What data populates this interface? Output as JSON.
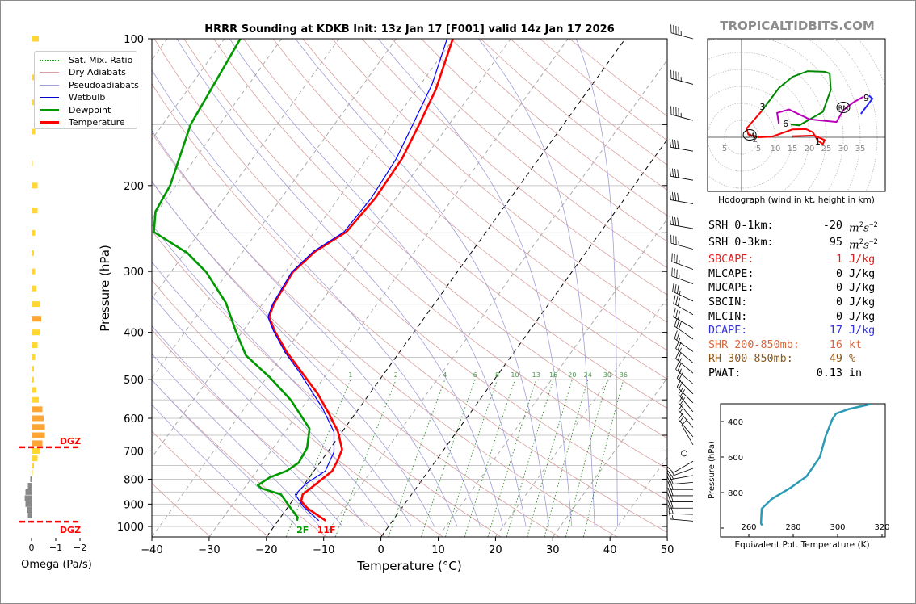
{
  "title": "HRRR Sounding at KDKB Init: 13z Jan 17 [F001] valid 14z Jan 17 2026",
  "brand": "TROPICALTIDBITS.COM",
  "colors": {
    "temperature": "#ff0000",
    "dewpoint": "#009900",
    "wetbulb": "#0000ff",
    "dry_adiabat": "#d9a0a0",
    "pseudoadiabat": "#a0a0d8",
    "mixing_ratio": "#2e8b2e",
    "thetae": "#2b9bb5",
    "omega_yellow": "#ffd633",
    "omega_orange": "#ffa533",
    "omega_gray": "#888888",
    "dgz": "#ff0000"
  },
  "legend": [
    {
      "label": "Sat. Mix. Ratio",
      "style": "dotted",
      "color": "#2e8b2e"
    },
    {
      "label": "Dry Adiabats",
      "style": "solid-thin",
      "color": "#d9a0a0"
    },
    {
      "label": "Pseudoadiabats",
      "style": "solid-thin",
      "color": "#a0a0d8"
    },
    {
      "label": "Wetbulb",
      "style": "solid",
      "color": "#0000cc"
    },
    {
      "label": "Dewpoint",
      "style": "thick",
      "color": "#009900"
    },
    {
      "label": "Temperature",
      "style": "thick",
      "color": "#ff0000"
    }
  ],
  "chart_data": [
    {
      "type": "line",
      "subtype": "skew-t",
      "title": "HRRR Sounding at KDKB Init: 13z Jan 17 [F001] valid 14z Jan 17 2026",
      "xlabel": "Temperature (°C)",
      "ylabel": "Pressure (hPa)",
      "xlim": [
        -40,
        50
      ],
      "ylim": [
        1050,
        100
      ],
      "yscale": "log",
      "x_ticks": [
        "−40",
        "−30",
        "−20",
        "−10",
        "0",
        "10",
        "20",
        "30",
        "40",
        "50"
      ],
      "y_ticks": [
        "100",
        "200",
        "300",
        "400",
        "500",
        "600",
        "700",
        "800",
        "900",
        "1000"
      ],
      "mixing_ratio_labels": [
        "1",
        "2",
        "4",
        "6",
        "8",
        "10",
        "13",
        "16",
        "20",
        "24",
        "30",
        "36"
      ],
      "highlight_isotherms": [
        0,
        -20
      ],
      "surface_labels": {
        "dewpoint": "2F",
        "temperature": "11F"
      },
      "series": [
        {
          "name": "Temperature",
          "p": [
            973,
            918,
            888,
            860,
            823,
            770,
            731,
            695,
            640,
            588,
            535,
            485,
            439,
            397,
            372,
            350,
            301,
            273,
            249,
            212,
            176,
            150,
            127,
            100
          ],
          "T": [
            -11.7,
            -16.4,
            -18.4,
            -19.0,
            -18.1,
            -16.8,
            -17.2,
            -17.8,
            -20.7,
            -24.5,
            -29.0,
            -34.3,
            -39.7,
            -44.5,
            -47.2,
            -48.0,
            -48.7,
            -47.4,
            -44.4,
            -43.6,
            -43.9,
            -45.2,
            -46.7,
            -50.1
          ]
        },
        {
          "name": "Dewpoint",
          "p": [
            973,
            958,
            910,
            860,
            835,
            823,
            793,
            770,
            740,
            690,
            630,
            550,
            496,
            446,
            397,
            348,
            301,
            275,
            249,
            226,
            200,
            150,
            100
          ],
          "T": [
            -16.7,
            -17.0,
            -19.8,
            -22.8,
            -27.0,
            -28.0,
            -26.9,
            -24.8,
            -23.7,
            -24.1,
            -26.1,
            -33.0,
            -39.3,
            -46.4,
            -51.3,
            -56.5,
            -63.8,
            -69.5,
            -78.0,
            -80.3,
            -81.0,
            -85.1,
            -87.2
          ]
        },
        {
          "name": "Wetbulb",
          "p": [
            973,
            910,
            860,
            817,
            770,
            703,
            640,
            572,
            485,
            439,
            397,
            372,
            350,
            301,
            273,
            249,
            212,
            176,
            150,
            124,
            100
          ],
          "T": [
            -12.9,
            -17.4,
            -20.3,
            -19.8,
            -18.0,
            -18.9,
            -21.4,
            -26.4,
            -34.7,
            -40.0,
            -44.7,
            -47.4,
            -48.2,
            -48.9,
            -47.7,
            -44.8,
            -44.3,
            -44.9,
            -46.3,
            -48.0,
            -51.1
          ]
        }
      ],
      "wind_barbs": [
        {
          "p": 100,
          "dir": 285,
          "kt": 45
        },
        {
          "p": 124,
          "dir": 285,
          "kt": 45
        },
        {
          "p": 147,
          "dir": 285,
          "kt": 45
        },
        {
          "p": 170,
          "dir": 280,
          "kt": 40
        },
        {
          "p": 195,
          "dir": 280,
          "kt": 40
        },
        {
          "p": 218,
          "dir": 280,
          "kt": 40
        },
        {
          "p": 245,
          "dir": 280,
          "kt": 40
        },
        {
          "p": 270,
          "dir": 285,
          "kt": 35
        },
        {
          "p": 297,
          "dir": 290,
          "kt": 35
        },
        {
          "p": 318,
          "dir": 290,
          "kt": 35
        },
        {
          "p": 345,
          "dir": 295,
          "kt": 35
        },
        {
          "p": 368,
          "dir": 300,
          "kt": 30
        },
        {
          "p": 392,
          "dir": 300,
          "kt": 30
        },
        {
          "p": 413,
          "dir": 305,
          "kt": 30
        },
        {
          "p": 438,
          "dir": 305,
          "kt": 25
        },
        {
          "p": 462,
          "dir": 310,
          "kt": 25
        },
        {
          "p": 485,
          "dir": 310,
          "kt": 25
        },
        {
          "p": 510,
          "dir": 310,
          "kt": 25
        },
        {
          "p": 535,
          "dir": 315,
          "kt": 20
        },
        {
          "p": 558,
          "dir": 315,
          "kt": 20
        },
        {
          "p": 582,
          "dir": 320,
          "kt": 20
        },
        {
          "p": 605,
          "dir": 320,
          "kt": 20
        },
        {
          "p": 627,
          "dir": 320,
          "kt": 15
        },
        {
          "p": 655,
          "dir": 320,
          "kt": 15
        },
        {
          "p": 680,
          "dir": 330,
          "kt": 10
        },
        {
          "p": 708,
          "dir": 0,
          "kt": 0
        },
        {
          "p": 735,
          "dir": 240,
          "kt": 10
        },
        {
          "p": 760,
          "dir": 250,
          "kt": 15
        },
        {
          "p": 786,
          "dir": 260,
          "kt": 15
        },
        {
          "p": 812,
          "dir": 265,
          "kt": 20
        },
        {
          "p": 840,
          "dir": 270,
          "kt": 20
        },
        {
          "p": 865,
          "dir": 270,
          "kt": 20
        },
        {
          "p": 890,
          "dir": 270,
          "kt": 20
        },
        {
          "p": 917,
          "dir": 270,
          "kt": 20
        },
        {
          "p": 945,
          "dir": 272,
          "kt": 20
        },
        {
          "p": 975,
          "dir": 275,
          "kt": 15
        }
      ]
    },
    {
      "type": "bar",
      "subtype": "omega-profile",
      "xlabel": "Omega (Pa/s)",
      "x_ticks": [
        "0",
        "−1",
        "−2"
      ],
      "xlim": [
        0.3,
        -2
      ],
      "dgz_label": "DGZ",
      "dgz_pressures": [
        688,
        978
      ],
      "p": [
        100,
        120,
        135,
        155,
        180,
        200,
        225,
        250,
        275,
        300,
        325,
        350,
        375,
        400,
        425,
        450,
        475,
        500,
        525,
        550,
        575,
        600,
        625,
        650,
        675,
        700,
        725,
        750,
        775,
        800,
        825,
        850,
        875,
        900,
        925,
        950
      ],
      "omega": [
        -0.3,
        -0.25,
        -0.2,
        -0.15,
        -0.05,
        -0.25,
        -0.25,
        -0.15,
        -0.1,
        -0.15,
        -0.2,
        -0.35,
        -0.4,
        -0.35,
        -0.25,
        -0.15,
        -0.1,
        -0.1,
        -0.2,
        -0.3,
        -0.45,
        -0.5,
        -0.55,
        -0.55,
        -0.45,
        -0.35,
        -0.25,
        -0.1,
        -0.05,
        0.05,
        0.15,
        0.25,
        0.28,
        0.25,
        0.2,
        0.15
      ]
    },
    {
      "type": "line",
      "subtype": "hodograph",
      "caption": "Hodograph (wind in kt, height in km)",
      "ring_labels": [
        "5",
        "5",
        "10",
        "15",
        "20",
        "25",
        "30",
        "35"
      ],
      "segments": [
        {
          "color": "#ff0000",
          "u": [
            15,
            21.5,
            24.5,
            24,
            22.5,
            21,
            19,
            15,
            9,
            5,
            2,
            1.5,
            6
          ],
          "v": [
            0.3,
            0.5,
            -0.8,
            -2,
            -1,
            1.5,
            2.4,
            2.3,
            0.2,
            0,
            0.8,
            2.6,
            7.8
          ]
        },
        {
          "color": "#008800",
          "u": [
            6,
            11,
            15,
            19.5,
            24.5,
            26,
            26.3,
            24,
            17,
            14.5
          ],
          "v": [
            7.8,
            14.5,
            17.8,
            19.5,
            19.3,
            18.8,
            14,
            7.5,
            3.5,
            3.8
          ]
        },
        {
          "color": "#bb00bb",
          "u": [
            11,
            10.5,
            14,
            20,
            28,
            30,
            33,
            36
          ],
          "v": [
            4,
            7.2,
            8.2,
            5.3,
            4.5,
            8,
            10.3,
            12
          ]
        },
        {
          "color": "#2222ff",
          "u": [
            35.2,
            38.6,
            37.5
          ],
          "v": [
            6.9,
            11.4,
            12.3
          ]
        }
      ],
      "height_labels": [
        {
          "t": "1",
          "u": 22.5,
          "v": -1.2
        },
        {
          "t": "2",
          "u": 4,
          "v": -0.3
        },
        {
          "t": "3",
          "u": 6.2,
          "v": 9
        },
        {
          "t": "6",
          "u": 13,
          "v": 4
        },
        {
          "t": "9",
          "u": 36.8,
          "v": 11.7
        }
      ],
      "markers": [
        {
          "t": "RM",
          "u": 30,
          "v": 8.8
        },
        {
          "t": "LM",
          "u": 2.4,
          "v": 0.7
        }
      ]
    },
    {
      "type": "line",
      "subtype": "theta-e-profile",
      "xlabel": "Equivalent Pot. Temperature (K)",
      "ylabel": "Pressure (hPa)",
      "xlim": [
        247,
        323
      ],
      "ylim": [
        1050,
        300
      ],
      "x_ticks": [
        "260",
        "280",
        "300",
        "320"
      ],
      "y_ticks": [
        "400",
        "600",
        "800"
      ],
      "theta_e": [
        315.6,
        305,
        299.3,
        297.5,
        294.6,
        292,
        286,
        278.8,
        270.4,
        265.8,
        265.5,
        266
      ],
      "p": [
        300,
        330,
        355,
        391,
        482,
        600,
        709,
        773,
        836,
        891,
        973,
        985
      ]
    }
  ],
  "stats": [
    {
      "label": "SRH 0-1km:",
      "value": "-20",
      "unit": "m",
      "unit_sup": "2",
      "unit2": "s",
      "unit2_sup": "−2",
      "color": "#000000"
    },
    {
      "label": "SRH 0-3km:",
      "value": "95",
      "unit": "m",
      "unit_sup": "2",
      "unit2": "s",
      "unit2_sup": "−2",
      "color": "#000000"
    },
    {
      "label": "SBCAPE:",
      "value": "1",
      "unit": "J/kg",
      "color": "#e02020"
    },
    {
      "label": "MLCAPE:",
      "value": "0",
      "unit": "J/kg",
      "color": "#000000"
    },
    {
      "label": "MUCAPE:",
      "value": "0",
      "unit": "J/kg",
      "color": "#000000"
    },
    {
      "label": "SBCIN:",
      "value": "0",
      "unit": "J/kg",
      "color": "#000000"
    },
    {
      "label": "MLCIN:",
      "value": "0",
      "unit": "J/kg",
      "color": "#000000"
    },
    {
      "label": "DCAPE:",
      "value": "17",
      "unit": "J/kg",
      "color": "#3333dd"
    },
    {
      "label": "SHR 200-850mb:",
      "value": "16",
      "unit": "kt",
      "color": "#d9673a"
    },
    {
      "label": "RH 300-850mb:",
      "value": "49",
      "unit": "%",
      "color": "#8b5a1a"
    },
    {
      "label": "PWAT:",
      "value": "0.13",
      "unit": "in",
      "color": "#000000"
    }
  ]
}
